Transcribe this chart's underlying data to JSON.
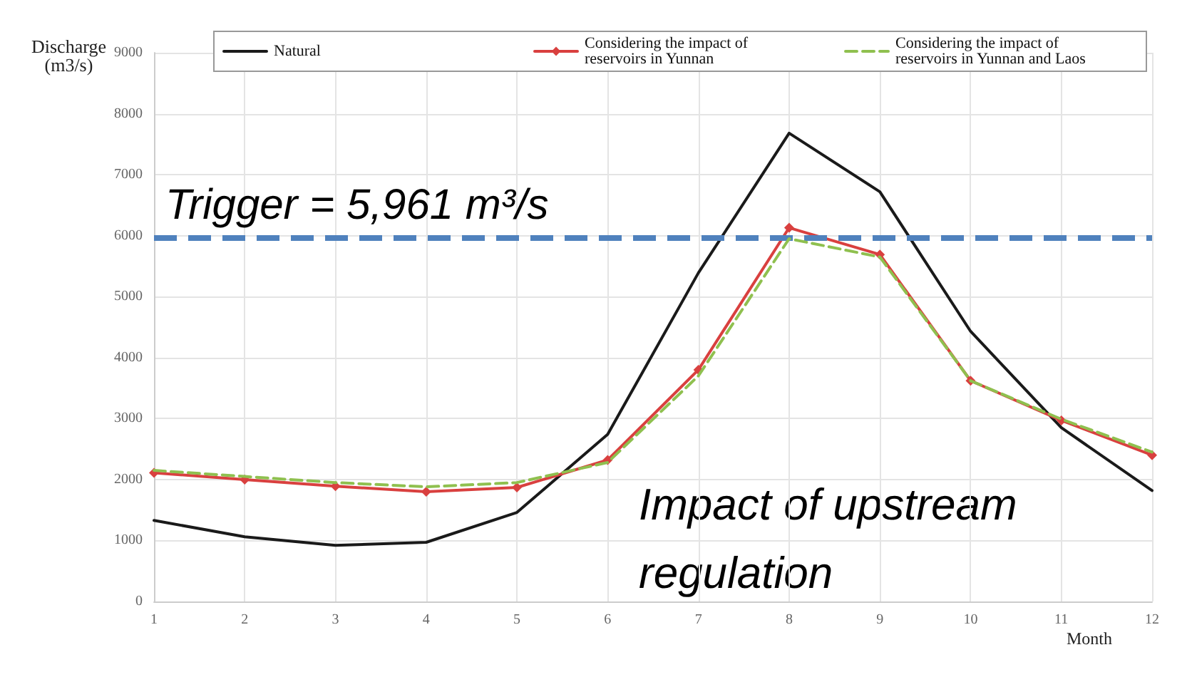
{
  "chart_data": {
    "type": "line",
    "xlabel": "Month",
    "ylabel": "Discharge\n(m3/s)",
    "x": [
      1,
      2,
      3,
      4,
      5,
      6,
      7,
      8,
      9,
      10,
      11,
      12
    ],
    "xlim": [
      1,
      12
    ],
    "xticks": [
      1,
      2,
      3,
      4,
      5,
      6,
      7,
      8,
      9,
      10,
      11,
      12
    ],
    "series": [
      {
        "name": "Natural",
        "color": "#1a1a1a",
        "marker": "none",
        "line_style": "solid",
        "values": [
          1330,
          1060,
          920,
          970,
          1460,
          2740,
          5390,
          7680,
          6720,
          4430,
          2850,
          1820
        ]
      },
      {
        "name": "Considering the impact of reservoirs in Yunnan",
        "color": "#d9403f",
        "marker": "diamond",
        "line_style": "solid",
        "values": [
          2110,
          2000,
          1890,
          1800,
          1870,
          2320,
          3800,
          6130,
          5690,
          3620,
          2970,
          2400
        ]
      },
      {
        "name": "Considering the impact of reservoirs in Yunnan and Laos",
        "color": "#8fc04f",
        "marker": "none",
        "line_style": "dashed",
        "values": [
          2150,
          2050,
          1950,
          1880,
          1950,
          2280,
          3700,
          5950,
          5650,
          3620,
          2990,
          2450
        ]
      }
    ],
    "ylim": [
      0,
      9000
    ],
    "yticks": [
      0,
      1000,
      2000,
      3000,
      4000,
      5000,
      6000,
      7000,
      8000,
      9000
    ],
    "ref_lines": [
      {
        "axis": "y",
        "value": 5961,
        "label": "Trigger = 5,961 m³/s",
        "color": "#4f81bd",
        "line_style": "dashed"
      }
    ],
    "annotations": [
      "Impact of upstream regulation"
    ],
    "grid": true,
    "legend": "top right"
  }
}
